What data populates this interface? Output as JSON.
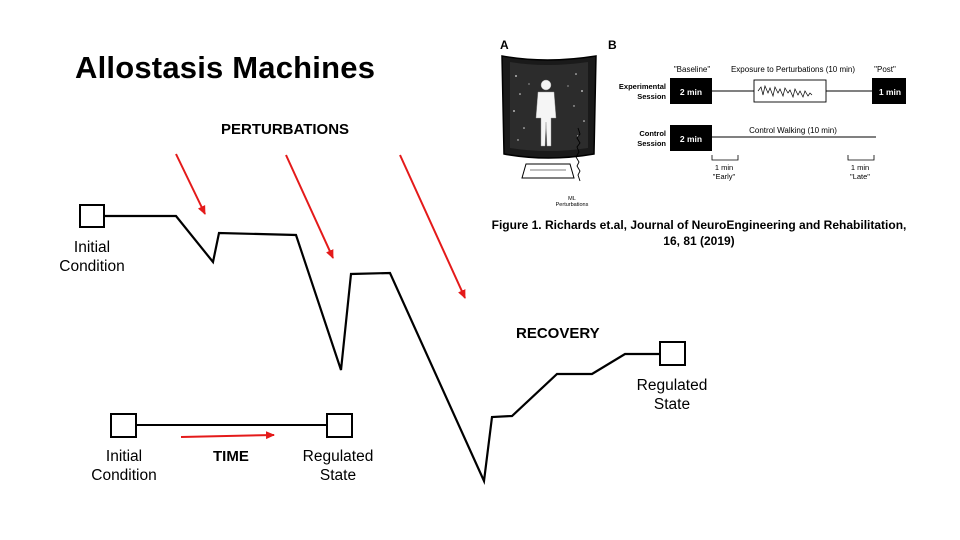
{
  "title": "Allostasis Machines",
  "labels": {
    "perturbations": "PERTURBATIONS",
    "recovery": "RECOVERY",
    "time": "TIME",
    "initial_top": "Initial\nCondition",
    "regulated_right": "Regulated\nState",
    "initial_bottom": "Initial\nCondition",
    "regulated_bottom": "Regulated\nState"
  },
  "figure": {
    "panel_a": "A",
    "panel_b": "B",
    "ml_perturbations": "ML\nPerturbations",
    "baseline": "\"Baseline\"",
    "exposure": "Exposure to Perturbations (10 min)",
    "post": "\"Post\"",
    "experimental_session": "Experimental\nSession",
    "control_session": "Control\nSession",
    "two_min_1": "2 min",
    "two_min_2": "2 min",
    "one_min_post": "1 min",
    "control_walking": "Control Walking (10 min)",
    "early_tick": "1 min",
    "early_label": "\"Early\"",
    "late_tick": "1 min",
    "late_label": "\"Late\"",
    "caption": "Figure 1. Richards et.al, Journal of NeuroEngineering and Rehabilitation, 16, 81 (2019)"
  },
  "colors": {
    "arrow": "#e41a1a",
    "line": "#000000"
  }
}
